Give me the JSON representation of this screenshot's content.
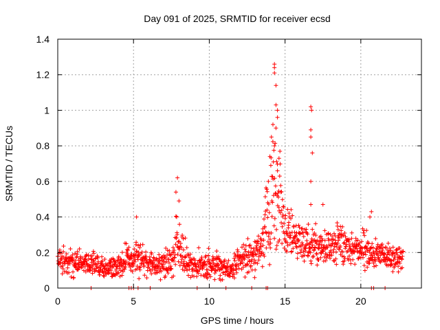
{
  "chart_data": {
    "type": "scatter",
    "title": "Day 091 of 2025, SRMTID for receiver ecsd",
    "xlabel": "GPS time / hours",
    "ylabel": "SRMTID / TECUs",
    "xlim": [
      0,
      24
    ],
    "ylim": [
      0,
      1.4
    ],
    "x_ticks": [
      "0",
      "5",
      "10",
      "15",
      "20"
    ],
    "x_tick_values": [
      0,
      5,
      10,
      15,
      20
    ],
    "y_ticks": [
      "0",
      "0.2",
      "0.4",
      "0.6",
      "0.8",
      "1",
      "1.2",
      "1.4"
    ],
    "y_tick_values": [
      0,
      0.2,
      0.4,
      0.6,
      0.8,
      1.0,
      1.2,
      1.4
    ],
    "grid": true,
    "marker": "plus",
    "color": "#ff0000",
    "series": [
      {
        "name": "SRMTID",
        "profile_x": [
          0,
          0.5,
          1.0,
          1.5,
          2.0,
          2.5,
          3.0,
          3.5,
          4.0,
          4.4,
          4.6,
          4.8,
          5.0,
          5.2,
          5.4,
          5.6,
          6.0,
          6.5,
          7.0,
          7.5,
          7.8,
          8.0,
          8.3,
          8.6,
          9.0,
          9.5,
          10.0,
          10.5,
          11.0,
          11.3,
          11.6,
          12.0,
          12.5,
          13.0,
          13.3,
          13.6,
          13.8,
          14.0,
          14.2,
          14.4,
          14.6,
          14.8,
          15.0,
          15.3,
          15.6,
          16.0,
          16.4,
          16.7,
          17.0,
          17.5,
          18.0,
          18.5,
          19.0,
          19.5,
          20.0,
          20.4,
          20.8,
          21.2,
          21.6,
          22.0,
          22.4,
          22.8
        ],
        "profile_mean": [
          0.15,
          0.15,
          0.14,
          0.16,
          0.14,
          0.13,
          0.12,
          0.12,
          0.12,
          0.14,
          0.2,
          0.14,
          0.12,
          0.2,
          0.16,
          0.18,
          0.15,
          0.12,
          0.13,
          0.15,
          0.2,
          0.22,
          0.18,
          0.15,
          0.13,
          0.12,
          0.12,
          0.13,
          0.12,
          0.1,
          0.1,
          0.18,
          0.17,
          0.19,
          0.2,
          0.3,
          0.38,
          0.45,
          0.52,
          0.55,
          0.48,
          0.38,
          0.32,
          0.3,
          0.3,
          0.28,
          0.24,
          0.25,
          0.24,
          0.22,
          0.24,
          0.25,
          0.23,
          0.22,
          0.21,
          0.22,
          0.19,
          0.18,
          0.18,
          0.17,
          0.17,
          0.18
        ],
        "profile_spread": [
          0.05,
          0.05,
          0.05,
          0.05,
          0.05,
          0.05,
          0.04,
          0.04,
          0.05,
          0.06,
          0.07,
          0.05,
          0.05,
          0.08,
          0.06,
          0.06,
          0.05,
          0.05,
          0.05,
          0.06,
          0.12,
          0.1,
          0.08,
          0.06,
          0.05,
          0.05,
          0.05,
          0.05,
          0.05,
          0.04,
          0.04,
          0.06,
          0.06,
          0.06,
          0.07,
          0.1,
          0.12,
          0.2,
          0.26,
          0.28,
          0.2,
          0.14,
          0.1,
          0.09,
          0.08,
          0.08,
          0.07,
          0.08,
          0.07,
          0.06,
          0.07,
          0.07,
          0.07,
          0.06,
          0.06,
          0.07,
          0.05,
          0.05,
          0.05,
          0.05,
          0.05,
          0.05
        ],
        "sample_interval_hours": 0.0167,
        "outliers": [
          {
            "x": 5.2,
            "y": 0.4
          },
          {
            "x": 7.9,
            "y": 0.62
          },
          {
            "x": 7.8,
            "y": 0.54
          },
          {
            "x": 8.0,
            "y": 0.49
          },
          {
            "x": 14.3,
            "y": 1.26
          },
          {
            "x": 14.3,
            "y": 1.24
          },
          {
            "x": 14.3,
            "y": 1.21
          },
          {
            "x": 14.4,
            "y": 1.14
          },
          {
            "x": 14.4,
            "y": 1.03
          },
          {
            "x": 14.5,
            "y": 1.0
          },
          {
            "x": 14.5,
            "y": 0.96
          },
          {
            "x": 14.2,
            "y": 0.92
          },
          {
            "x": 14.4,
            "y": 0.9
          },
          {
            "x": 14.1,
            "y": 0.85
          },
          {
            "x": 14.3,
            "y": 0.8
          },
          {
            "x": 14.0,
            "y": 0.74
          },
          {
            "x": 14.6,
            "y": 0.73
          },
          {
            "x": 14.5,
            "y": 0.66
          },
          {
            "x": 13.9,
            "y": 0.6
          },
          {
            "x": 16.7,
            "y": 1.02
          },
          {
            "x": 16.75,
            "y": 1.0
          },
          {
            "x": 16.7,
            "y": 0.89
          },
          {
            "x": 16.7,
            "y": 0.85
          },
          {
            "x": 16.8,
            "y": 0.76
          },
          {
            "x": 16.7,
            "y": 0.6
          },
          {
            "x": 16.7,
            "y": 0.47
          },
          {
            "x": 17.5,
            "y": 0.47
          },
          {
            "x": 20.7,
            "y": 0.43
          },
          {
            "x": 20.6,
            "y": 0.4
          }
        ],
        "zero_points_x": [
          2.2,
          4.7,
          4.85,
          5.0,
          5.3,
          6.1,
          9.2,
          11.1,
          12.8,
          13.75,
          13.85,
          20.7,
          20.85,
          21.6
        ]
      }
    ]
  }
}
